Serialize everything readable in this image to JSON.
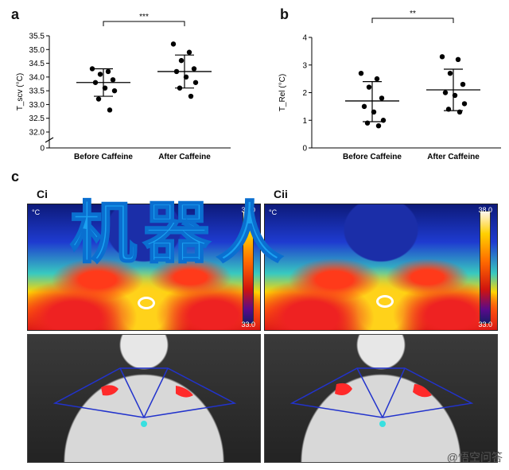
{
  "panels": {
    "a": "a",
    "b": "b",
    "c": "c",
    "ci": "Ci",
    "cii": "Cii"
  },
  "chart_data": [
    {
      "type": "scatter",
      "panel": "a",
      "categories": [
        "Before Caffeine",
        "After Caffeine"
      ],
      "ylabel": "T_scv (°C)",
      "ylim": [
        32.0,
        35.5
      ],
      "yticks": [
        "32.0",
        "32.5",
        "33.0",
        "33.5",
        "34.0",
        "34.5",
        "35.0",
        "35.5",
        "0"
      ],
      "axis_break": true,
      "significance": "***",
      "series": [
        {
          "values": [
            34.3,
            34.2,
            34.1,
            33.9,
            33.8,
            33.6,
            33.5,
            33.2,
            32.8
          ]
        },
        {
          "values": [
            35.2,
            34.9,
            34.6,
            34.3,
            34.2,
            34.0,
            33.8,
            33.6,
            33.3
          ]
        }
      ],
      "summary": [
        {
          "mean": 33.8,
          "sd_low": 33.3,
          "sd_high": 34.3
        },
        {
          "mean": 34.2,
          "sd_low": 33.6,
          "sd_high": 34.8
        }
      ]
    },
    {
      "type": "scatter",
      "panel": "b",
      "categories": [
        "Before Caffeine",
        "After Caffeine"
      ],
      "ylabel": "T_Rel (°C)",
      "ylim": [
        0,
        4
      ],
      "yticks": [
        "0",
        "1",
        "2",
        "3",
        "4"
      ],
      "significance": "**",
      "series": [
        {
          "values": [
            2.7,
            2.5,
            2.2,
            1.8,
            1.5,
            1.3,
            1.0,
            0.9,
            0.8
          ]
        },
        {
          "values": [
            3.3,
            3.2,
            2.7,
            2.3,
            2.0,
            1.9,
            1.6,
            1.4,
            1.3
          ]
        }
      ],
      "summary": [
        {
          "mean": 1.7,
          "sd_low": 0.95,
          "sd_high": 2.4
        },
        {
          "mean": 2.1,
          "sd_low": 1.35,
          "sd_high": 2.85
        }
      ]
    }
  ],
  "thermal": {
    "unit": "°C",
    "max": "38.0",
    "min": "33.0"
  },
  "watermark": "机器人",
  "logo": "@悟空问答",
  "colors": {
    "watermark": "#1aa0f0",
    "marker": "#000000",
    "overlay_line": "#2233cc",
    "overlay_dot": "#38e0e0",
    "hotspot": "#ff2a2a"
  }
}
